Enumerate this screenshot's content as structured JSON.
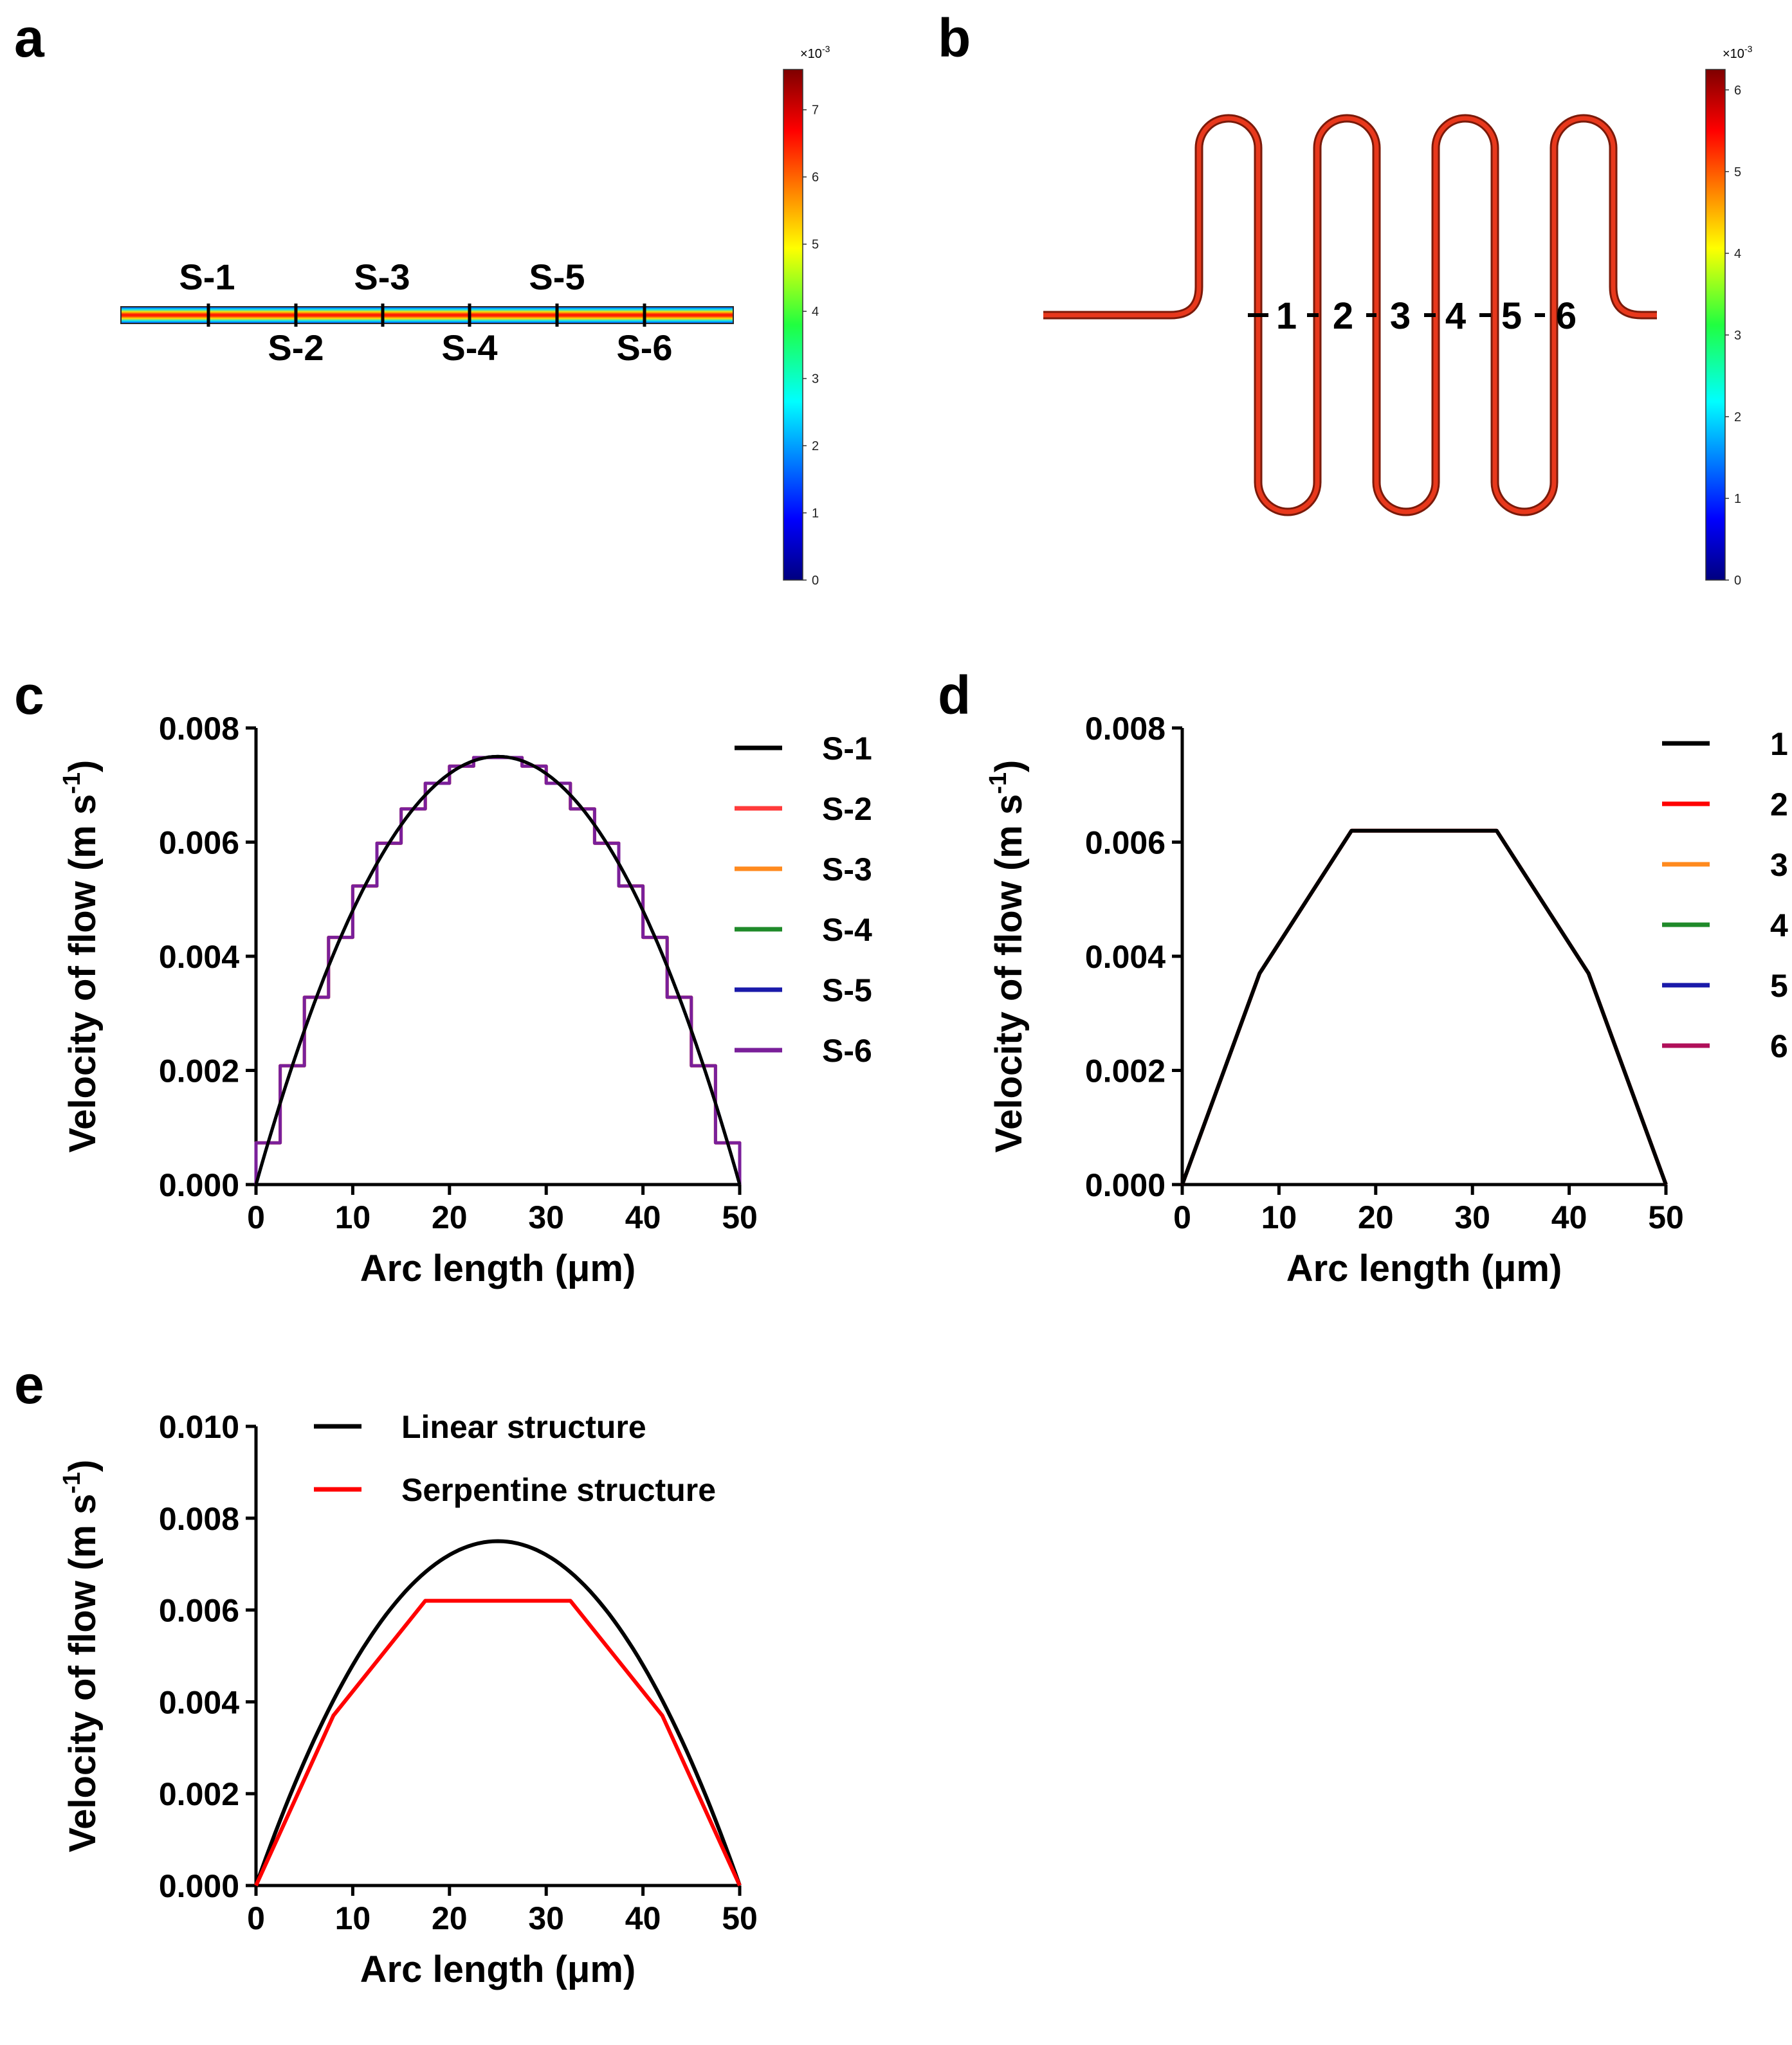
{
  "figure": {
    "panel_labels": [
      "a",
      "b",
      "c",
      "d",
      "e"
    ],
    "colorbar_a": {
      "exponent": "×10",
      "exponent_power": "-3",
      "ticks": [
        "0",
        "1",
        "2",
        "3",
        "4",
        "5",
        "6",
        "7"
      ],
      "max": 7.6
    },
    "colorbar_b": {
      "exponent": "×10",
      "exponent_power": "-3",
      "ticks": [
        "0",
        "1",
        "2",
        "3",
        "4",
        "5",
        "6"
      ],
      "max": 6.25
    },
    "section_labels_a": [
      "S-1",
      "S-2",
      "S-3",
      "S-4",
      "S-5",
      "S-6"
    ],
    "section_labels_b": [
      "1",
      "2",
      "3",
      "4",
      "5",
      "6"
    ],
    "colors": {
      "black": "#000000",
      "red": "#ff3b3b",
      "orange": "#ff8a1e",
      "green": "#1f8a2a",
      "blue": "#1a1aaa",
      "purple": "#7a1f9a",
      "magenta": "#b0105a",
      "pure_red": "#ff0000"
    }
  },
  "chart_data": [
    {
      "panel": "c",
      "type": "line",
      "title": "",
      "xlabel": "Arc length (μm)",
      "ylabel": "Velocity of flow (m s",
      "ylabel_sup": "-1",
      "ylabel_end": ")",
      "xlim": [
        0,
        50
      ],
      "ylim": [
        0,
        0.008
      ],
      "xticks": [
        "0",
        "10",
        "20",
        "30",
        "40",
        "50"
      ],
      "yticks": [
        "0.000",
        "0.002",
        "0.004",
        "0.006",
        "0.008"
      ],
      "legend": "top-right",
      "series": [
        {
          "name": "S-1",
          "color": "#000000",
          "shape": "parabola",
          "peak": 0.0075
        },
        {
          "name": "S-2",
          "color": "#ff3b3b",
          "shape": "stepped",
          "peak": 0.0075
        },
        {
          "name": "S-3",
          "color": "#ff8a1e",
          "shape": "stepped",
          "peak": 0.0075
        },
        {
          "name": "S-4",
          "color": "#1f8a2a",
          "shape": "parabola",
          "peak": 0.0075
        },
        {
          "name": "S-5",
          "color": "#1a1aaa",
          "shape": "parabola",
          "peak": 0.0075
        },
        {
          "name": "S-6",
          "color": "#7a1f9a",
          "shape": "stepped",
          "peak": 0.0075
        }
      ]
    },
    {
      "panel": "d",
      "type": "line",
      "title": "",
      "xlabel": "Arc length (μm)",
      "ylabel": "Velocity of flow (m s",
      "ylabel_sup": "-1",
      "ylabel_end": ")",
      "xlim": [
        0,
        50
      ],
      "ylim": [
        0,
        0.008
      ],
      "xticks": [
        "0",
        "10",
        "20",
        "30",
        "40",
        "50"
      ],
      "yticks": [
        "0.000",
        "0.002",
        "0.004",
        "0.006",
        "0.008"
      ],
      "legend": "top-right",
      "x": [
        0,
        8,
        17.5,
        25,
        32.5,
        42,
        50
      ],
      "series": [
        {
          "name": "1",
          "color": "#000000",
          "values": [
            0,
            0.0037,
            0.0062,
            0.0062,
            0.0062,
            0.0037,
            0
          ]
        },
        {
          "name": "2",
          "color": "#ff0000",
          "values": [
            0,
            0.0037,
            0.0062,
            0.0062,
            0.0062,
            0.0037,
            0
          ]
        },
        {
          "name": "3",
          "color": "#ff8a1e",
          "values": [
            0,
            0.0037,
            0.0062,
            0.0062,
            0.0062,
            0.0037,
            0
          ]
        },
        {
          "name": "4",
          "color": "#1f8a2a",
          "values": [
            0,
            0.0037,
            0.0062,
            0.0062,
            0.0062,
            0.0037,
            0
          ]
        },
        {
          "name": "5",
          "color": "#1a1aaa",
          "values": [
            0,
            0.0037,
            0.0062,
            0.0062,
            0.0062,
            0.0037,
            0
          ]
        },
        {
          "name": "6",
          "color": "#b0105a",
          "values": [
            0,
            0.0037,
            0.0062,
            0.0062,
            0.0062,
            0.0037,
            0
          ]
        }
      ]
    },
    {
      "panel": "e",
      "type": "line",
      "title": "",
      "xlabel": "Arc length (μm)",
      "ylabel": "Velocity of flow (m s",
      "ylabel_sup": "-1",
      "ylabel_end": ")",
      "xlim": [
        0,
        50
      ],
      "ylim": [
        0,
        0.01
      ],
      "xticks": [
        "0",
        "10",
        "20",
        "30",
        "40",
        "50"
      ],
      "yticks": [
        "0.000",
        "0.002",
        "0.004",
        "0.006",
        "0.008",
        "0.010"
      ],
      "legend": "top-left",
      "series": [
        {
          "name": "Linear structure",
          "color": "#000000",
          "shape": "parabola",
          "peak": 0.0075
        },
        {
          "name": "Serpentine structure",
          "color": "#ff0000",
          "x": [
            0,
            8,
            17.5,
            25,
            32.5,
            42,
            50
          ],
          "values": [
            0,
            0.0037,
            0.0062,
            0.0062,
            0.0062,
            0.0037,
            0
          ]
        }
      ]
    }
  ]
}
